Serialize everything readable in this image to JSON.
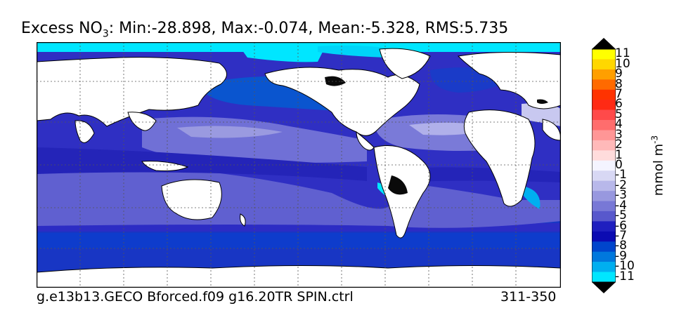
{
  "title": {
    "prefix": "Excess NO",
    "sub": "3",
    "suffix": ": Min:-28.898, Max:-0.074, Mean:-5.328, RMS:5.735"
  },
  "footer": {
    "run": "g.e13b13.GECO Bforced.f09 g16.20TR SPIN.ctrl",
    "years": "311-350"
  },
  "colorbar": {
    "unit": "mmol m",
    "unit_sup": "-3",
    "labels": [
      "11",
      "10",
      "9",
      "8",
      "7",
      "6",
      "5",
      "4",
      "3",
      "2",
      "1",
      "0",
      "-1",
      "-2",
      "-3",
      "-4",
      "-5",
      "-6",
      "-7",
      "-8",
      "-9",
      "-10",
      "-11"
    ],
    "colors": [
      "#ffff00",
      "#ffd700",
      "#ff9f00",
      "#ff6a00",
      "#ff3300",
      "#ff2a14",
      "#ff4a4a",
      "#ff6d6d",
      "#ff9696",
      "#ffb9b9",
      "#ffdcdc",
      "#f4f4ff",
      "#d8d8f4",
      "#b8b8ea",
      "#9898df",
      "#7878d6",
      "#5858cc",
      "#1f1fbf",
      "#0b0bb2",
      "#0045cc",
      "#0078dd",
      "#00aff0",
      "#00e6ff"
    ],
    "over_color": "#000000",
    "under_color": "#000000"
  }
}
